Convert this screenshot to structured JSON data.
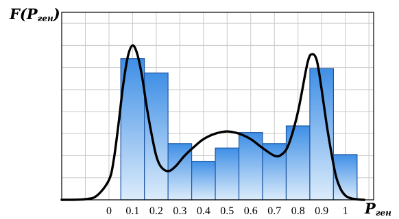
{
  "chart_data": {
    "type": "bar",
    "ylabel": {
      "main": "F(P",
      "sub": "ген",
      "close": ")"
    },
    "xlabel": {
      "main": "P",
      "sub": "ген"
    },
    "x_ticks": [
      "0",
      "0.1",
      "0.2",
      "0.3",
      "0.4",
      "0.5",
      "0.6",
      "0.7",
      "0.8",
      "0.9",
      "1"
    ],
    "xlim": [
      -0.2,
      1.12
    ],
    "ylim": [
      0,
      8.5
    ],
    "grid": true,
    "bins": [
      {
        "from": 0.05,
        "to": 0.15,
        "value": 6.4
      },
      {
        "from": 0.15,
        "to": 0.25,
        "value": 5.75
      },
      {
        "from": 0.25,
        "to": 0.35,
        "value": 2.55
      },
      {
        "from": 0.35,
        "to": 0.45,
        "value": 1.75
      },
      {
        "from": 0.45,
        "to": 0.55,
        "value": 2.35
      },
      {
        "from": 0.55,
        "to": 0.65,
        "value": 3.05
      },
      {
        "from": 0.65,
        "to": 0.75,
        "value": 2.55
      },
      {
        "from": 0.75,
        "to": 0.85,
        "value": 3.35
      },
      {
        "from": 0.85,
        "to": 0.95,
        "value": 5.95
      },
      {
        "from": 0.95,
        "to": 1.05,
        "value": 2.05
      }
    ],
    "density_curve": {
      "x": [
        -0.2,
        -0.1,
        -0.05,
        0.0,
        0.02,
        0.04,
        0.06,
        0.08,
        0.1,
        0.12,
        0.14,
        0.16,
        0.18,
        0.2,
        0.22,
        0.25,
        0.28,
        0.32,
        0.36,
        0.4,
        0.45,
        0.5,
        0.55,
        0.6,
        0.65,
        0.7,
        0.73,
        0.76,
        0.8,
        0.84,
        0.86,
        0.88,
        0.9,
        0.92,
        0.94,
        0.96,
        0.98,
        1.0,
        1.02,
        1.05,
        1.08
      ],
      "y": [
        0.0,
        0.03,
        0.2,
        0.9,
        1.8,
        3.4,
        5.2,
        6.5,
        7.0,
        6.6,
        5.6,
        4.2,
        3.0,
        2.0,
        1.5,
        1.3,
        1.5,
        2.0,
        2.4,
        2.75,
        3.0,
        3.1,
        3.0,
        2.75,
        2.35,
        2.0,
        2.05,
        2.5,
        4.0,
        6.2,
        6.6,
        6.3,
        5.0,
        3.5,
        2.2,
        1.1,
        0.5,
        0.2,
        0.08,
        0.02,
        0.0
      ]
    },
    "colors": {
      "bar_top": "#3f8fe6",
      "bar_bottom": "#dcecfb",
      "bar_edge": "#1c56a3",
      "curve": "#000000",
      "grid": "#c8c8c8",
      "frame": "#000000"
    }
  }
}
